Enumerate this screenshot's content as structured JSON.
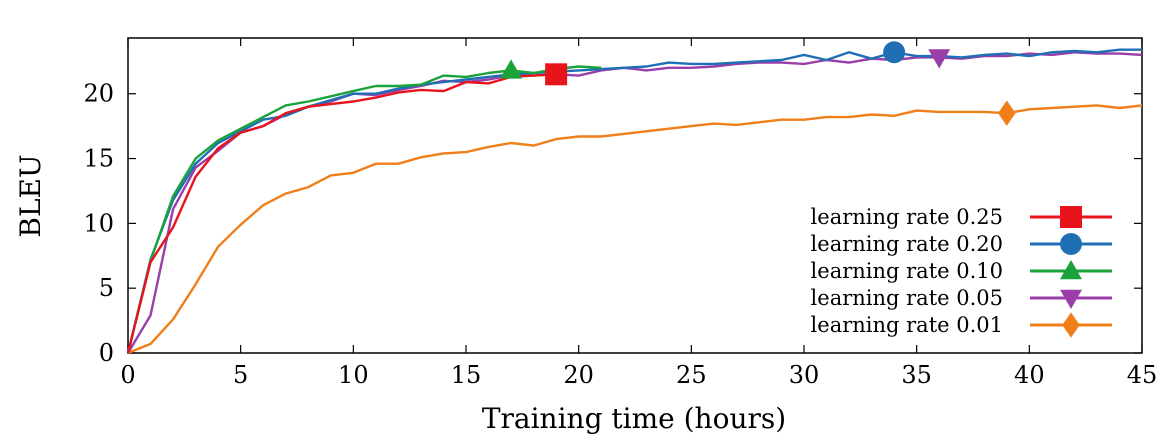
{
  "chart_data": {
    "type": "line",
    "title": "",
    "xlabel": "Training time (hours)",
    "ylabel": "BLEU",
    "xlim": [
      0,
      45
    ],
    "ylim": [
      0,
      24.3
    ],
    "xticks": [
      0,
      5,
      10,
      15,
      20,
      25,
      30,
      35,
      40,
      45
    ],
    "yticks": [
      0,
      5,
      10,
      15,
      20
    ],
    "grid": false,
    "legend_position": "bottom-right",
    "series": [
      {
        "name": "learning rate 0.25",
        "color": "#e8141c",
        "marker": "square",
        "x": [
          0,
          1,
          2,
          3,
          4,
          5,
          6,
          7,
          8,
          9,
          10,
          11,
          12,
          13,
          14,
          15,
          16,
          17,
          18,
          19
        ],
        "y": [
          0,
          7.0,
          9.7,
          13.6,
          15.8,
          17.0,
          17.5,
          18.5,
          19.0,
          19.2,
          19.4,
          19.7,
          20.1,
          20.3,
          20.2,
          20.9,
          20.8,
          21.3,
          21.4,
          21.5
        ],
        "marker_x": 19,
        "marker_y": 21.5
      },
      {
        "name": "learning rate 0.20",
        "color": "#1f6fb4",
        "marker": "circle",
        "x": [
          0,
          1,
          2,
          3,
          4,
          5,
          6,
          7,
          8,
          9,
          10,
          11,
          12,
          13,
          14,
          15,
          16,
          17,
          18,
          19,
          20,
          21,
          22,
          23,
          24,
          25,
          26,
          27,
          28,
          29,
          30,
          31,
          32,
          33,
          34,
          35,
          36,
          37,
          38,
          39,
          40,
          41,
          42,
          43,
          44,
          45
        ],
        "y": [
          0,
          7.2,
          11.8,
          14.6,
          16.2,
          17.1,
          18.0,
          18.3,
          19.0,
          19.5,
          20.0,
          20.0,
          20.4,
          20.7,
          20.9,
          21.1,
          21.3,
          21.5,
          21.6,
          21.7,
          21.8,
          21.9,
          22.0,
          22.1,
          22.4,
          22.3,
          22.3,
          22.4,
          22.5,
          22.6,
          23.0,
          22.6,
          23.2,
          22.7,
          23.2,
          22.9,
          22.9,
          22.8,
          23.0,
          23.1,
          22.9,
          23.2,
          23.3,
          23.2,
          23.4,
          23.4
        ],
        "marker_x": 34,
        "marker_y": 23.2
      },
      {
        "name": "learning rate 0.10",
        "color": "#1aa33a",
        "marker": "triangle-up",
        "x": [
          0,
          1,
          2,
          3,
          4,
          5,
          6,
          7,
          8,
          9,
          10,
          11,
          12,
          13,
          14,
          15,
          16,
          17,
          18,
          19,
          20,
          21
        ],
        "y": [
          0,
          7.1,
          12.1,
          15.0,
          16.4,
          17.3,
          18.2,
          19.1,
          19.4,
          19.8,
          20.2,
          20.6,
          20.6,
          20.7,
          21.4,
          21.3,
          21.6,
          21.8,
          21.6,
          21.9,
          22.1,
          22.0
        ],
        "marker_x": 17,
        "marker_y": 21.8
      },
      {
        "name": "learning rate 0.05",
        "color": "#9a3ea9",
        "marker": "triangle-down",
        "x": [
          0,
          1,
          2,
          3,
          4,
          5,
          6,
          7,
          8,
          9,
          10,
          11,
          12,
          13,
          14,
          15,
          16,
          17,
          18,
          19,
          20,
          21,
          22,
          23,
          24,
          25,
          26,
          27,
          28,
          29,
          30,
          31,
          32,
          33,
          34,
          35,
          36,
          37,
          38,
          39,
          40,
          41,
          42,
          43,
          44,
          45
        ],
        "y": [
          0,
          2.9,
          11.1,
          14.3,
          15.6,
          17.0,
          17.5,
          18.4,
          19.0,
          19.4,
          20.0,
          19.9,
          20.3,
          20.6,
          21.0,
          20.9,
          21.1,
          21.4,
          21.4,
          21.5,
          21.4,
          21.8,
          22.0,
          21.8,
          22.0,
          22.0,
          22.1,
          22.3,
          22.4,
          22.4,
          22.3,
          22.6,
          22.4,
          22.7,
          22.6,
          22.8,
          22.8,
          22.7,
          22.9,
          22.9,
          23.1,
          23.0,
          23.2,
          23.1,
          23.1,
          23.0
        ],
        "marker_x": 36,
        "marker_y": 22.8
      },
      {
        "name": "learning rate 0.01",
        "color": "#f07f1a",
        "marker": "diamond",
        "x": [
          0,
          1,
          2,
          3,
          4,
          5,
          6,
          7,
          8,
          9,
          10,
          11,
          12,
          13,
          14,
          15,
          16,
          17,
          18,
          19,
          20,
          21,
          22,
          23,
          24,
          25,
          26,
          27,
          28,
          29,
          30,
          31,
          32,
          33,
          34,
          35,
          36,
          37,
          38,
          39,
          40,
          41,
          42,
          43,
          44,
          45
        ],
        "y": [
          0,
          0.7,
          2.6,
          5.3,
          8.2,
          9.9,
          11.4,
          12.3,
          12.8,
          13.7,
          13.9,
          14.6,
          14.6,
          15.1,
          15.4,
          15.5,
          15.9,
          16.2,
          16.0,
          16.5,
          16.7,
          16.7,
          16.9,
          17.1,
          17.3,
          17.5,
          17.7,
          17.6,
          17.8,
          18.0,
          18.0,
          18.2,
          18.2,
          18.4,
          18.3,
          18.7,
          18.6,
          18.6,
          18.6,
          18.5,
          18.8,
          18.9,
          19.0,
          19.1,
          18.9,
          19.1
        ],
        "marker_x": 39,
        "marker_y": 18.5
      }
    ]
  }
}
